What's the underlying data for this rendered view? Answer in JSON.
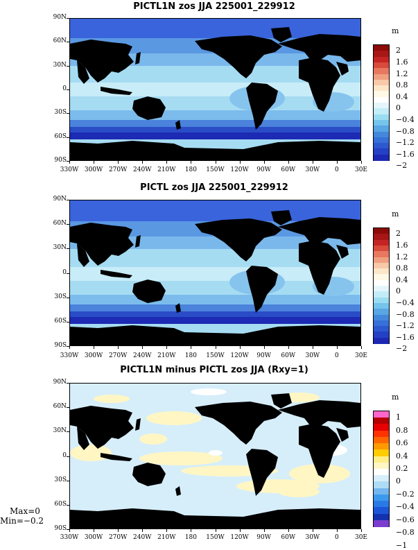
{
  "panels": [
    {
      "title": "PICTL1N zos JJA 225001_229912",
      "unit": "m",
      "colorbar_labels": [
        "2",
        "1.6",
        "1.2",
        "0.8",
        "0.4",
        "0",
        "−0.4",
        "−0.8",
        "−1.2",
        "−1.6",
        "−2"
      ]
    },
    {
      "title": "PICTL zos JJA 225001_229912",
      "unit": "m",
      "colorbar_labels": [
        "2",
        "1.6",
        "1.2",
        "0.8",
        "0.4",
        "0",
        "−0.4",
        "−0.8",
        "−1.2",
        "−1.6",
        "−2"
      ]
    },
    {
      "title": "PICTL1N minus PICTL zos JJA (Rxy=1)",
      "unit": "m",
      "colorbar_labels": [
        "1",
        "0.8",
        "0.6",
        "0.4",
        "0.2",
        "0",
        "−0.2",
        "−0.4",
        "−0.6",
        "−0.8",
        "−1"
      ]
    }
  ],
  "lat_labels": [
    "90N",
    "60N",
    "30N",
    "0",
    "30S",
    "60S",
    "90S"
  ],
  "lon_labels": [
    "330W",
    "300W",
    "270W",
    "240W",
    "210W",
    "180",
    "150W",
    "120W",
    "90W",
    "60W",
    "30W",
    "0",
    "30E"
  ],
  "stats": {
    "max": "Max=0",
    "min": "Min=−0.2"
  },
  "colors": {
    "land": "#000000",
    "abs_colorbar": [
      "#8c0a0a",
      "#a81616",
      "#c42424",
      "#d84a3a",
      "#e87860",
      "#f0a080",
      "#f8c8a8",
      "#fde6c8",
      "#fff8e4",
      "#ffffff",
      "#e4f6fc",
      "#c2ecf8",
      "#9adcf2",
      "#74c4ec",
      "#58a6e4",
      "#4488dc",
      "#3670d8",
      "#2c58d0",
      "#2440c4",
      "#1c28b4"
    ],
    "diff_colorbar": [
      "#ff66cc",
      "#b40000",
      "#e60000",
      "#ff3300",
      "#ff6600",
      "#ff9900",
      "#ffcc00",
      "#ffee88",
      "#fff6c4",
      "#ffffff",
      "#d6eefa",
      "#aedcf6",
      "#74b6ee",
      "#3c9aee",
      "#2a7ae6",
      "#1c56d8",
      "#1432b0",
      "#7c3cd0"
    ]
  }
}
